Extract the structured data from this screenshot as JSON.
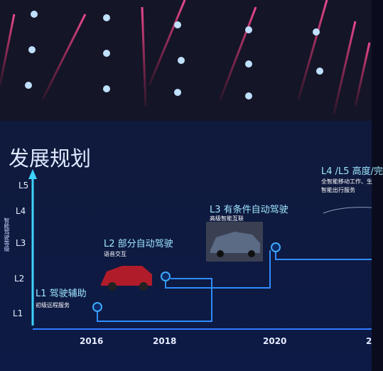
{
  "title": "发展规划",
  "axis_label": "智能驾驶等级",
  "levels": [
    "L5",
    "L4",
    "L3",
    "L2",
    "L1"
  ],
  "years": [
    "2016",
    "2018",
    "2020",
    "2"
  ],
  "stages": [
    {
      "title": "L1 驾驶辅助",
      "subtitles": [
        "初级远程服务"
      ]
    },
    {
      "title": "L2 部分自动驾驶",
      "subtitles": [
        "语音交互"
      ]
    },
    {
      "title": "L3 有条件自动驾驶",
      "subtitles": [
        "高级智能互联"
      ]
    },
    {
      "title": "L4 /L5 高度/完",
      "subtitles": [
        "全智能移动工作、生",
        "智能出行服务"
      ]
    }
  ]
}
